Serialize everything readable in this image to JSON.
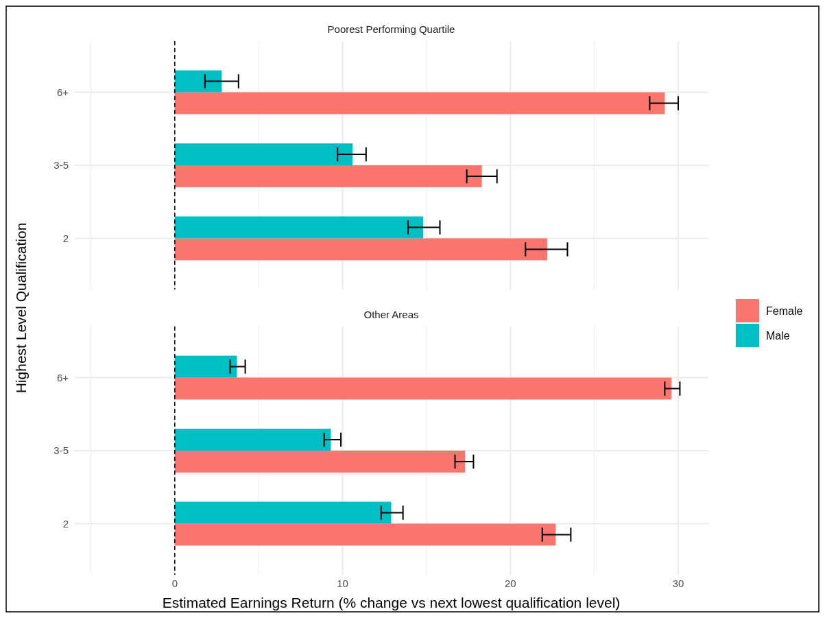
{
  "chart_data": [
    {
      "type": "bar",
      "orientation": "horizontal",
      "title": "Poorest Performing Quartile",
      "ylabel": "Highest Level Qualification",
      "categories": [
        "6+",
        "3-5",
        "2"
      ],
      "xlim": [
        -6,
        31.8
      ],
      "xticks": [
        0,
        10,
        20,
        30
      ],
      "grid": true,
      "tick_labels": "y",
      "ref_lines": [
        {
          "axis": "x",
          "value": 0,
          "color": "#000000",
          "line_style": "dashed"
        }
      ],
      "series": [
        {
          "color": "#f8766d",
          "values": [
            29.2,
            18.3,
            22.2
          ],
          "errors": [
            [
              28.3,
              30.0
            ],
            [
              17.4,
              19.2
            ],
            [
              20.9,
              23.4
            ]
          ]
        },
        {
          "color": "#00bfc4",
          "values": [
            2.8,
            10.6,
            14.8
          ],
          "errors": [
            [
              1.8,
              3.8
            ],
            [
              9.7,
              11.4
            ],
            [
              13.9,
              15.8
            ]
          ]
        }
      ]
    },
    {
      "type": "bar",
      "orientation": "horizontal",
      "title": "Other Areas",
      "xlabel": "Estimated Earnings Return (% change vs next lowest qualification level)",
      "categories": [
        "6+",
        "3-5",
        "2"
      ],
      "xlim": [
        -6,
        31.8
      ],
      "xticks": [
        0,
        10,
        20,
        30
      ],
      "grid": true,
      "legend": "right",
      "ref_lines": [
        {
          "axis": "x",
          "value": 0,
          "color": "#000000",
          "line_style": "dashed"
        }
      ],
      "series": [
        {
          "name": "Female",
          "color": "#f8766d",
          "values": [
            29.6,
            17.3,
            22.7
          ],
          "errors": [
            [
              29.2,
              30.1
            ],
            [
              16.7,
              17.8
            ],
            [
              21.9,
              23.6
            ]
          ]
        },
        {
          "name": "Male",
          "color": "#00bfc4",
          "values": [
            3.7,
            9.3,
            12.9
          ],
          "errors": [
            [
              3.3,
              4.2
            ],
            [
              8.9,
              9.9
            ],
            [
              12.3,
              13.6
            ]
          ]
        }
      ]
    }
  ]
}
